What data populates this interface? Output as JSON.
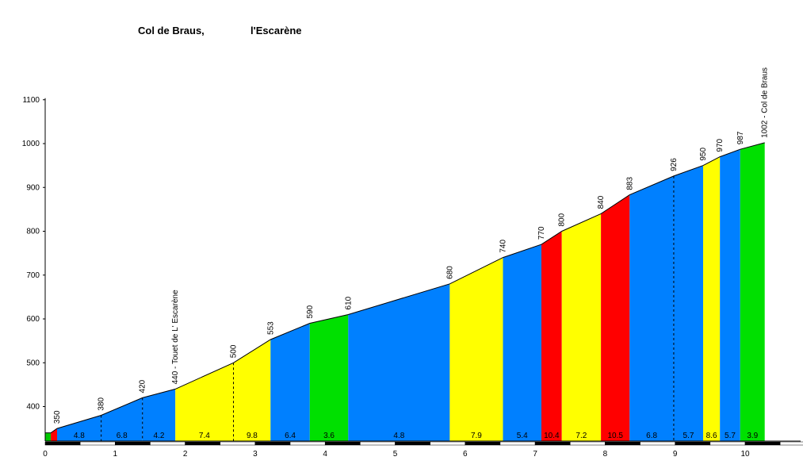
{
  "title": {
    "climb": "Col de Braus,",
    "start": "l'Escarène"
  },
  "chart_data": {
    "type": "area",
    "title": "Col de Braus,   l'Escarène",
    "xlabel": "",
    "ylabel": "",
    "xlim": [
      0,
      10.9
    ],
    "ylim": [
      330,
      1100
    ],
    "y_ticks": [
      400,
      500,
      600,
      700,
      800,
      900,
      1000,
      1100
    ],
    "x_ticks": [
      0,
      1,
      2,
      3,
      4,
      5,
      6,
      7,
      8,
      9,
      10
    ],
    "grid": false,
    "profile_points": [
      {
        "km": 0.0,
        "alt": 340
      },
      {
        "km": 0.08,
        "alt": 340
      },
      {
        "km": 0.17,
        "alt": 350
      },
      {
        "km": 0.8,
        "alt": 380
      },
      {
        "km": 1.39,
        "alt": 420
      },
      {
        "km": 1.86,
        "alt": 440
      },
      {
        "km": 2.69,
        "alt": 500
      },
      {
        "km": 3.22,
        "alt": 553
      },
      {
        "km": 3.78,
        "alt": 590
      },
      {
        "km": 4.33,
        "alt": 610
      },
      {
        "km": 5.78,
        "alt": 680
      },
      {
        "km": 6.54,
        "alt": 740
      },
      {
        "km": 7.09,
        "alt": 770
      },
      {
        "km": 7.38,
        "alt": 800
      },
      {
        "km": 7.94,
        "alt": 840
      },
      {
        "km": 8.35,
        "alt": 883
      },
      {
        "km": 8.98,
        "alt": 926
      },
      {
        "km": 9.4,
        "alt": 950
      },
      {
        "km": 9.64,
        "alt": 970
      },
      {
        "km": 9.93,
        "alt": 987
      },
      {
        "km": 10.28,
        "alt": 1002
      }
    ],
    "altitude_labels": [
      {
        "km": 0.17,
        "text": "350"
      },
      {
        "km": 0.8,
        "text": "380"
      },
      {
        "km": 1.39,
        "text": "420"
      },
      {
        "km": 1.86,
        "text": "440 - Touet de L' Escarène"
      },
      {
        "km": 2.69,
        "text": "500"
      },
      {
        "km": 3.22,
        "text": "553"
      },
      {
        "km": 3.78,
        "text": "590"
      },
      {
        "km": 4.33,
        "text": "610"
      },
      {
        "km": 5.78,
        "text": "680"
      },
      {
        "km": 6.54,
        "text": "740"
      },
      {
        "km": 7.09,
        "text": "770"
      },
      {
        "km": 7.38,
        "text": "800"
      },
      {
        "km": 7.94,
        "text": "840"
      },
      {
        "km": 8.35,
        "text": "883"
      },
      {
        "km": 8.98,
        "text": "926"
      },
      {
        "km": 9.4,
        "text": "950"
      },
      {
        "km": 9.64,
        "text": "970"
      },
      {
        "km": 9.93,
        "text": "987"
      },
      {
        "km": 10.28,
        "text": "1002 - Col de Braus"
      }
    ],
    "segments": [
      {
        "from": 0.0,
        "to": 0.08,
        "color": "#00c800",
        "gradient": ""
      },
      {
        "from": 0.08,
        "to": 0.17,
        "color": "#ff0000",
        "gradient": ""
      },
      {
        "from": 0.17,
        "to": 0.8,
        "color": "#0080ff",
        "gradient": "4.8"
      },
      {
        "from": 0.8,
        "to": 1.39,
        "color": "#0080ff",
        "gradient": "6.8"
      },
      {
        "from": 1.39,
        "to": 1.86,
        "color": "#0080ff",
        "gradient": "4.2"
      },
      {
        "from": 1.86,
        "to": 2.69,
        "color": "#ffff00",
        "gradient": "7.4"
      },
      {
        "from": 2.69,
        "to": 3.22,
        "color": "#ffff00",
        "gradient": "9.8"
      },
      {
        "from": 3.22,
        "to": 3.78,
        "color": "#0080ff",
        "gradient": "6.4"
      },
      {
        "from": 3.78,
        "to": 4.33,
        "color": "#00e000",
        "gradient": "3.6"
      },
      {
        "from": 4.33,
        "to": 5.78,
        "color": "#0080ff",
        "gradient": "4.8"
      },
      {
        "from": 5.78,
        "to": 6.54,
        "color": "#ffff00",
        "gradient": "7.9"
      },
      {
        "from": 6.54,
        "to": 7.09,
        "color": "#0080ff",
        "gradient": "5.4"
      },
      {
        "from": 7.09,
        "to": 7.38,
        "color": "#ff0000",
        "gradient": "10.4"
      },
      {
        "from": 7.38,
        "to": 7.94,
        "color": "#ffff00",
        "gradient": "7.2"
      },
      {
        "from": 7.94,
        "to": 8.35,
        "color": "#ff0000",
        "gradient": "10.5"
      },
      {
        "from": 8.35,
        "to": 8.98,
        "color": "#0080ff",
        "gradient": "6.8"
      },
      {
        "from": 8.98,
        "to": 9.4,
        "color": "#0080ff",
        "gradient": "5.7"
      },
      {
        "from": 9.4,
        "to": 9.64,
        "color": "#ffff00",
        "gradient": "8.6"
      },
      {
        "from": 9.64,
        "to": 9.93,
        "color": "#0080ff",
        "gradient": "5.7"
      },
      {
        "from": 9.93,
        "to": 10.28,
        "color": "#00e000",
        "gradient": "3.9"
      }
    ]
  }
}
